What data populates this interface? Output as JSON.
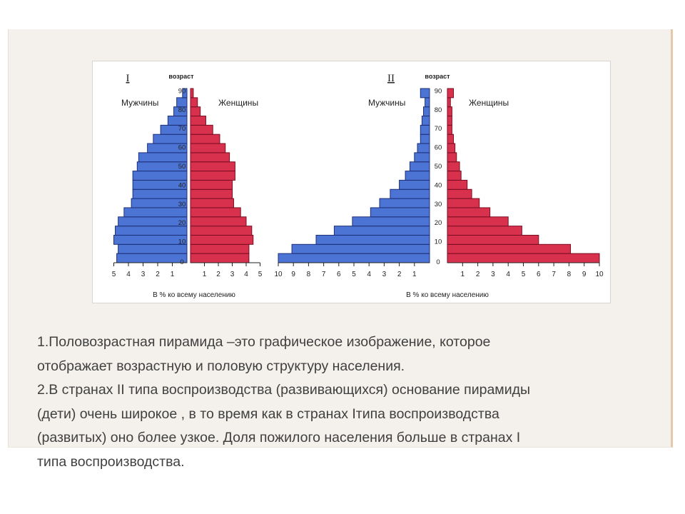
{
  "chart_data": [
    {
      "type": "bar",
      "orientation": "horizontal-pyramid",
      "title": "I",
      "age_header": "возраст",
      "age_labels": [
        "0",
        "10",
        "20",
        "30",
        "40",
        "50",
        "60",
        "70",
        "80",
        "90"
      ],
      "x_axis_label": "В % ко всему населению",
      "xlim": [
        0,
        5
      ],
      "x_ticks_left": [
        "5",
        "4",
        "3",
        "2",
        "1"
      ],
      "x_ticks_right": [
        "1",
        "2",
        "3",
        "4",
        "5"
      ],
      "series": [
        {
          "name": "Мужчины",
          "color": "#4c74d4",
          "values": [
            4.8,
            4.7,
            5.0,
            4.9,
            4.7,
            4.3,
            3.8,
            3.7,
            3.7,
            3.7,
            3.4,
            3.3,
            2.7,
            2.3,
            1.8,
            1.3,
            0.9,
            0.7,
            0.3
          ]
        },
        {
          "name": "Женщины",
          "color": "#d8314e",
          "values": [
            4.2,
            4.2,
            4.5,
            4.4,
            4.0,
            3.6,
            3.1,
            3.0,
            3.0,
            3.2,
            3.2,
            2.8,
            2.5,
            2.1,
            1.6,
            1.1,
            0.7,
            0.5,
            0.2
          ]
        }
      ]
    },
    {
      "type": "bar",
      "orientation": "horizontal-pyramid",
      "title": "II",
      "age_header": "возраст",
      "age_labels": [
        "0",
        "10",
        "20",
        "30",
        "40",
        "50",
        "60",
        "70",
        "80",
        "90"
      ],
      "x_axis_label": "В % ко всему населению",
      "xlim": [
        0,
        10
      ],
      "x_ticks_left": [
        "10",
        "9",
        "8",
        "7",
        "6",
        "5",
        "4",
        "3",
        "2",
        "1"
      ],
      "x_ticks_right": [
        "1",
        "2",
        "3",
        "4",
        "5",
        "6",
        "7",
        "8",
        "9",
        "10"
      ],
      "series": [
        {
          "name": "Мужчины",
          "color": "#4c74d4",
          "values": [
            10.0,
            9.1,
            7.5,
            6.3,
            5.1,
            3.9,
            3.3,
            2.6,
            2.0,
            1.6,
            1.3,
            1.0,
            0.8,
            0.6,
            0.6,
            0.5,
            0.4,
            0.3,
            0.6
          ]
        },
        {
          "name": "Женщины",
          "color": "#d8314e",
          "values": [
            10.0,
            8.1,
            6.0,
            4.9,
            4.0,
            2.8,
            2.1,
            1.6,
            1.3,
            0.9,
            0.8,
            0.6,
            0.5,
            0.4,
            0.3,
            0.3,
            0.3,
            0.2,
            0.4
          ]
        }
      ]
    }
  ],
  "caption": {
    "lines": [
      "1.Половозрастная пирамида –это графическое изображение, которое",
      "отображает возрастную и половую структуру населения.",
      "2.В странах II типа воспроизводства (развивающихся) основание пирамиды",
      "(дети) очень широкое , в то время как в странах Iтипа воспроизводства",
      "(развитых) оно более узкое. Доля пожилого населения больше в странах I",
      "типа воспроизводства."
    ]
  }
}
